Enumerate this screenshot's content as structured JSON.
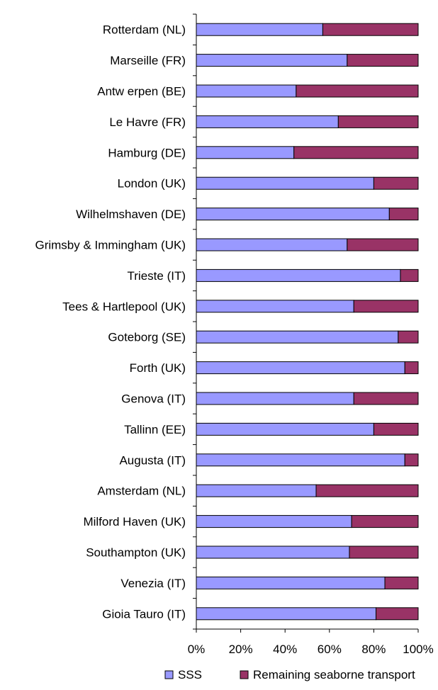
{
  "chart_data": {
    "type": "bar",
    "orientation": "horizontal",
    "stacking": "percent",
    "categories": [
      "Rotterdam (NL)",
      "Marseille (FR)",
      "Antw erpen (BE)",
      "Le Havre (FR)",
      "Hamburg (DE)",
      "London (UK)",
      "Wilhelmshaven (DE)",
      "Grimsby & Immingham (UK)",
      "Trieste (IT)",
      "Tees & Hartlepool (UK)",
      "Goteborg (SE)",
      "Forth (UK)",
      "Genova (IT)",
      "Tallinn (EE)",
      "Augusta (IT)",
      "Amsterdam (NL)",
      "Milford Haven (UK)",
      "Southampton (UK)",
      "Venezia (IT)",
      "Gioia Tauro (IT)"
    ],
    "series": [
      {
        "name": "SSS",
        "color": "#9999ff",
        "values": [
          57,
          68,
          45,
          64,
          44,
          80,
          87,
          68,
          92,
          71,
          91,
          94,
          71,
          80,
          94,
          54,
          70,
          69,
          85,
          81
        ]
      },
      {
        "name": "Remaining seaborne transport",
        "color": "#993366",
        "values": [
          43,
          32,
          55,
          36,
          56,
          20,
          13,
          32,
          8,
          29,
          9,
          6,
          29,
          20,
          6,
          46,
          30,
          31,
          15,
          19
        ]
      }
    ],
    "x_ticks": [
      "0%",
      "20%",
      "40%",
      "60%",
      "80%",
      "100%"
    ],
    "xlim": [
      0,
      100
    ],
    "title": "",
    "xlabel": "",
    "ylabel": "",
    "grid": false,
    "legend_position": "bottom"
  }
}
